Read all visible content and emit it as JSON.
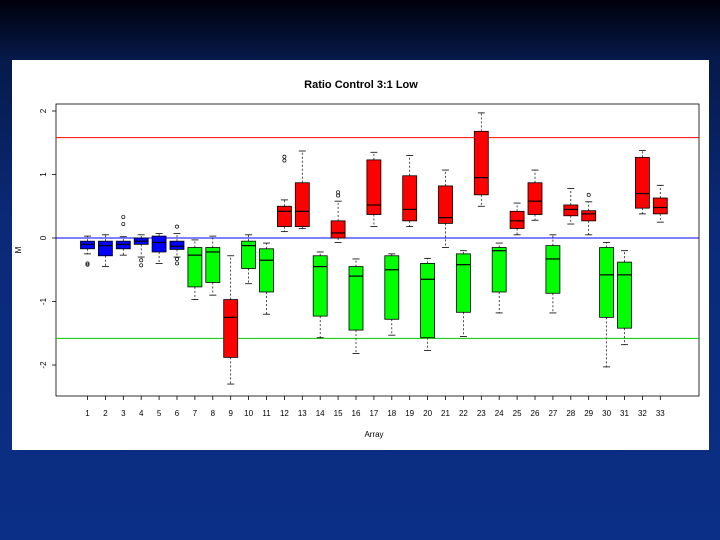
{
  "chart_data": {
    "type": "boxplot",
    "title": "Ratio Control 3:1 Low",
    "xlabel": "Array",
    "ylabel": "M",
    "ylim": [
      -2.5,
      2.2
    ],
    "yticks": [
      -2,
      -1,
      0,
      1,
      2
    ],
    "categories": [
      "1",
      "2",
      "3",
      "4",
      "5",
      "6",
      "7",
      "8",
      "9",
      "10",
      "11",
      "12",
      "13",
      "14",
      "15",
      "16",
      "17",
      "18",
      "19",
      "20",
      "21",
      "22",
      "23",
      "24",
      "25",
      "26",
      "27",
      "28",
      "29",
      "30",
      "31",
      "32",
      "33"
    ],
    "reference_lines": [
      {
        "y": 1.58,
        "color": "#ff0000"
      },
      {
        "y": 0,
        "color": "#0000ff"
      },
      {
        "y": -1.58,
        "color": "#00cc00"
      }
    ],
    "colors": {
      "blue": "#0000ff",
      "green": "#00ff00",
      "red": "#ff0000"
    },
    "boxes": [
      {
        "color": "blue",
        "lw": -0.25,
        "q1": -0.17,
        "med": -0.1,
        "q3": -0.05,
        "uw": 0.03,
        "outliers": [
          -0.4,
          -0.42
        ]
      },
      {
        "color": "blue",
        "lw": -0.45,
        "q1": -0.28,
        "med": -0.12,
        "q3": -0.05,
        "uw": 0.05,
        "outliers": []
      },
      {
        "color": "blue",
        "lw": -0.27,
        "q1": -0.17,
        "med": -0.1,
        "q3": -0.05,
        "uw": 0.02,
        "outliers": [
          0.22,
          0.33
        ]
      },
      {
        "color": "blue",
        "lw": -0.3,
        "q1": -0.1,
        "med": -0.05,
        "q3": 0.0,
        "uw": 0.05,
        "outliers": [
          -0.35,
          -0.43
        ]
      },
      {
        "color": "blue",
        "lw": -0.4,
        "q1": -0.22,
        "med": -0.07,
        "q3": 0.03,
        "uw": 0.07,
        "outliers": []
      },
      {
        "color": "blue",
        "lw": -0.3,
        "q1": -0.18,
        "med": -0.13,
        "q3": -0.05,
        "uw": 0.07,
        "outliers": [
          -0.33,
          -0.4,
          0.18
        ]
      },
      {
        "color": "green",
        "lw": -0.97,
        "q1": -0.77,
        "med": -0.27,
        "q3": -0.15,
        "uw": -0.03,
        "outliers": []
      },
      {
        "color": "green",
        "lw": -0.9,
        "q1": -0.7,
        "med": -0.22,
        "q3": -0.15,
        "uw": 0.03,
        "outliers": []
      },
      {
        "color": "red",
        "lw": -2.3,
        "q1": -1.88,
        "med": -1.25,
        "q3": -0.97,
        "uw": -0.28,
        "outliers": []
      },
      {
        "color": "green",
        "lw": -0.72,
        "q1": -0.48,
        "med": -0.12,
        "q3": -0.05,
        "uw": 0.05,
        "outliers": []
      },
      {
        "color": "green",
        "lw": -1.2,
        "q1": -0.85,
        "med": -0.35,
        "q3": -0.17,
        "uw": -0.08,
        "outliers": []
      },
      {
        "color": "red",
        "lw": 0.1,
        "q1": 0.18,
        "med": 0.42,
        "q3": 0.5,
        "uw": 0.6,
        "outliers": [
          1.22,
          1.28
        ]
      },
      {
        "color": "red",
        "lw": 0.15,
        "q1": 0.18,
        "med": 0.42,
        "q3": 0.87,
        "uw": 1.37,
        "outliers": []
      },
      {
        "color": "green",
        "lw": -1.57,
        "q1": -1.23,
        "med": -0.45,
        "q3": -0.28,
        "uw": -0.22,
        "outliers": []
      },
      {
        "color": "red",
        "lw": -0.07,
        "q1": 0.0,
        "med": 0.08,
        "q3": 0.27,
        "uw": 0.58,
        "outliers": [
          0.67,
          0.72
        ]
      },
      {
        "color": "green",
        "lw": -1.82,
        "q1": -1.45,
        "med": -0.6,
        "q3": -0.45,
        "uw": -0.33,
        "outliers": []
      },
      {
        "color": "red",
        "lw": 0.18,
        "q1": 0.37,
        "med": 0.52,
        "q3": 1.23,
        "uw": 1.35,
        "outliers": []
      },
      {
        "color": "green",
        "lw": -1.53,
        "q1": -1.28,
        "med": -0.5,
        "q3": -0.28,
        "uw": -0.25,
        "outliers": []
      },
      {
        "color": "red",
        "lw": 0.18,
        "q1": 0.27,
        "med": 0.45,
        "q3": 0.98,
        "uw": 1.3,
        "outliers": []
      },
      {
        "color": "green",
        "lw": -1.77,
        "q1": -1.57,
        "med": -0.65,
        "q3": -0.4,
        "uw": -0.32,
        "outliers": []
      },
      {
        "color": "red",
        "lw": -0.15,
        "q1": 0.23,
        "med": 0.32,
        "q3": 0.82,
        "uw": 1.07,
        "outliers": []
      },
      {
        "color": "green",
        "lw": -1.55,
        "q1": -1.17,
        "med": -0.42,
        "q3": -0.25,
        "uw": -0.2,
        "outliers": []
      },
      {
        "color": "red",
        "lw": 0.5,
        "q1": 0.68,
        "med": 0.95,
        "q3": 1.68,
        "uw": 1.97,
        "outliers": []
      },
      {
        "color": "green",
        "lw": -1.18,
        "q1": -0.85,
        "med": -0.2,
        "q3": -0.15,
        "uw": -0.08,
        "outliers": []
      },
      {
        "color": "red",
        "lw": 0.05,
        "q1": 0.15,
        "med": 0.27,
        "q3": 0.42,
        "uw": 0.55,
        "outliers": []
      },
      {
        "color": "red",
        "lw": 0.28,
        "q1": 0.37,
        "med": 0.58,
        "q3": 0.87,
        "uw": 1.07,
        "outliers": []
      },
      {
        "color": "green",
        "lw": -1.18,
        "q1": -0.87,
        "med": -0.33,
        "q3": -0.12,
        "uw": 0.05,
        "outliers": []
      },
      {
        "color": "red",
        "lw": 0.22,
        "q1": 0.35,
        "med": 0.45,
        "q3": 0.52,
        "uw": 0.78,
        "outliers": []
      },
      {
        "color": "red",
        "lw": 0.05,
        "q1": 0.27,
        "med": 0.38,
        "q3": 0.43,
        "uw": 0.57,
        "outliers": [
          0.68
        ]
      },
      {
        "color": "green",
        "lw": -2.03,
        "q1": -1.25,
        "med": -0.58,
        "q3": -0.15,
        "uw": -0.07,
        "outliers": []
      },
      {
        "color": "green",
        "lw": -1.68,
        "q1": -1.42,
        "med": -0.58,
        "q3": -0.38,
        "uw": -0.2,
        "outliers": []
      },
      {
        "color": "red",
        "lw": 0.38,
        "q1": 0.47,
        "med": 0.7,
        "q3": 1.27,
        "uw": 1.38,
        "outliers": []
      },
      {
        "color": "red",
        "lw": 0.25,
        "q1": 0.38,
        "med": 0.48,
        "q3": 0.63,
        "uw": 0.83,
        "outliers": []
      }
    ]
  }
}
